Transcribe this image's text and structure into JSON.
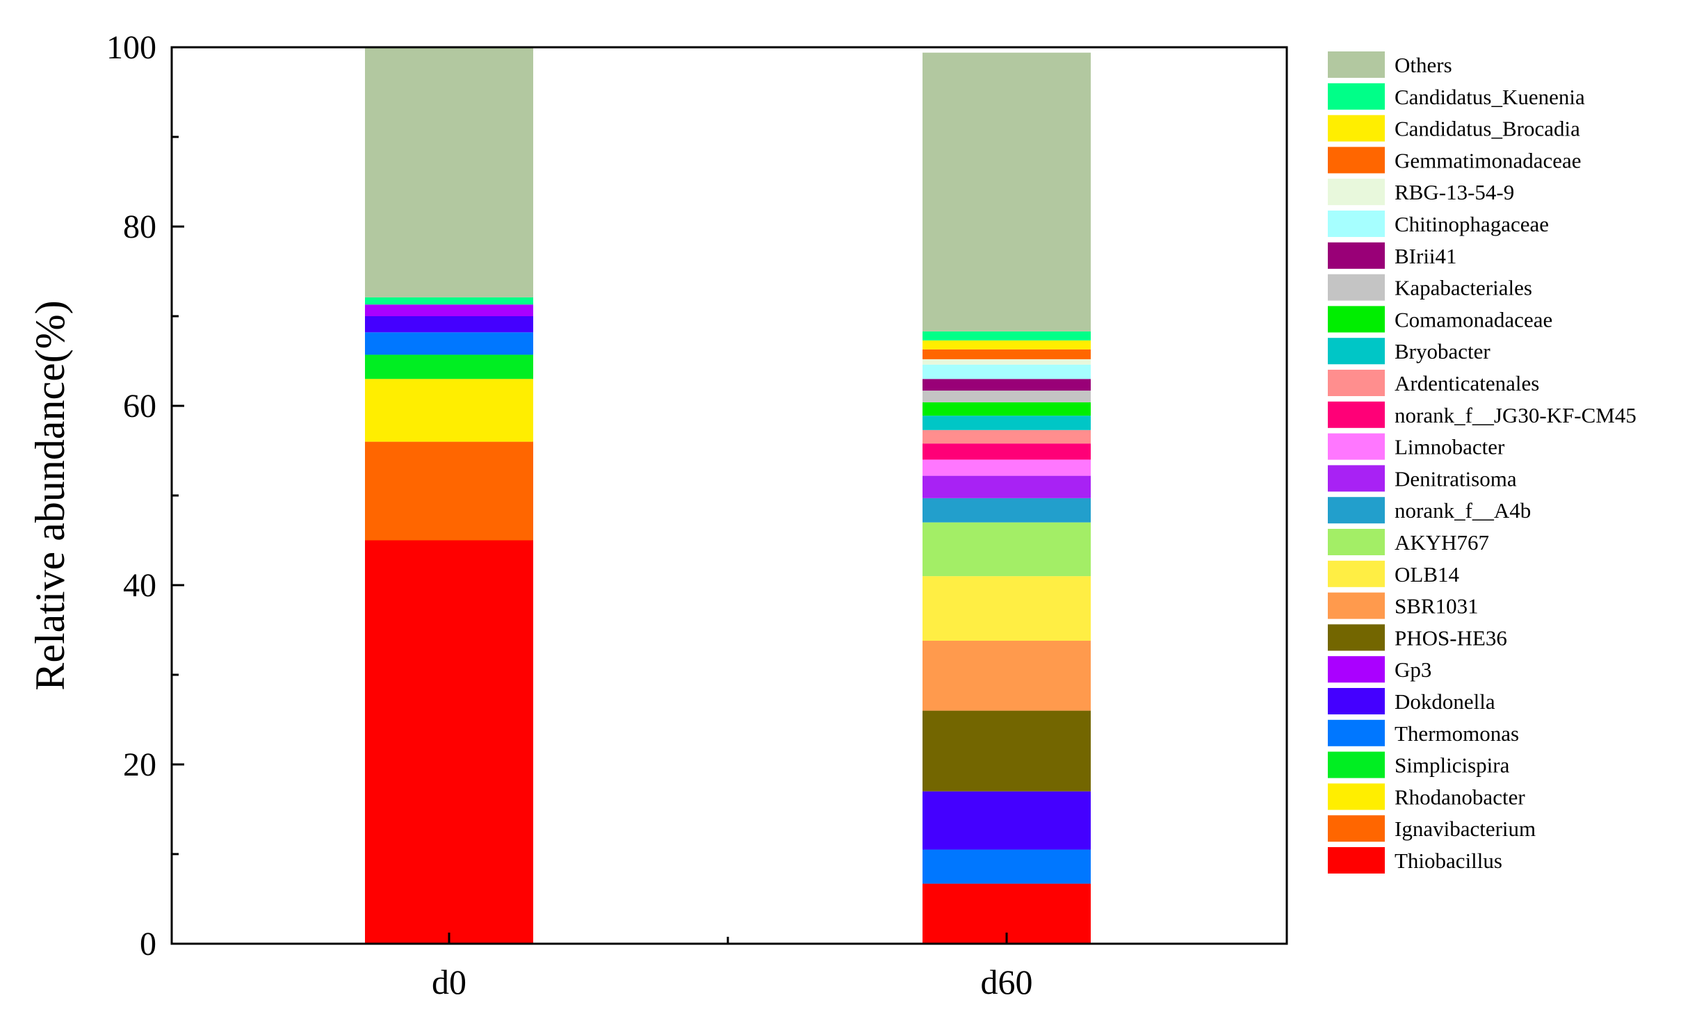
{
  "chart_data": {
    "type": "bar",
    "stacked": true,
    "title": "",
    "xlabel": "",
    "ylabel": "Relative abundance(%)",
    "ylim": [
      0,
      100
    ],
    "yticks": [
      0,
      20,
      40,
      60,
      80,
      100
    ],
    "categories": [
      "d0",
      "d60"
    ],
    "legend_position": "right",
    "grid": false,
    "series": [
      {
        "name": "Thiobacillus",
        "color": "#FF0000",
        "values": [
          45.0,
          6.7
        ]
      },
      {
        "name": "Ignavibacterium",
        "color": "#FF6600",
        "values": [
          11.0,
          0.0
        ]
      },
      {
        "name": "Rhodanobacter",
        "color": "#FFEE00",
        "values": [
          7.0,
          0.0
        ]
      },
      {
        "name": "Simplicispira",
        "color": "#00EE22",
        "values": [
          2.7,
          0.0
        ]
      },
      {
        "name": "Thermomonas",
        "color": "#0077FF",
        "values": [
          2.5,
          3.8
        ]
      },
      {
        "name": "Dokdonella",
        "color": "#4400FF",
        "values": [
          1.8,
          6.5
        ]
      },
      {
        "name": "Gp3",
        "color": "#AA00FF",
        "values": [
          1.3,
          0.0
        ]
      },
      {
        "name": "PHOS-HE36",
        "color": "#736600",
        "values": [
          0.0,
          9.0
        ]
      },
      {
        "name": "SBR1031",
        "color": "#FF9A4D",
        "values": [
          0.0,
          7.8
        ]
      },
      {
        "name": "OLB14",
        "color": "#FFEE44",
        "values": [
          0.0,
          7.2
        ]
      },
      {
        "name": "AKYH767",
        "color": "#A3EE66",
        "values": [
          0.0,
          6.0
        ]
      },
      {
        "name": "norank_f__A4b",
        "color": "#229FCC",
        "values": [
          0.0,
          2.7
        ]
      },
      {
        "name": "Denitratisoma",
        "color": "#A822F4",
        "values": [
          0.0,
          2.5
        ]
      },
      {
        "name": "Limnobacter",
        "color": "#FF77FF",
        "values": [
          0.0,
          1.8
        ]
      },
      {
        "name": "norank_f__JG30-KF-CM45",
        "color": "#FF0077",
        "values": [
          0.0,
          1.8
        ]
      },
      {
        "name": "Ardenticatenales",
        "color": "#FF8E8E",
        "values": [
          0.0,
          1.5
        ]
      },
      {
        "name": "Bryobacter",
        "color": "#00C6C6",
        "values": [
          0.0,
          1.6
        ]
      },
      {
        "name": "Comamonadaceae",
        "color": "#00EE00",
        "values": [
          0.0,
          1.5
        ]
      },
      {
        "name": "Kapabacteriales",
        "color": "#C4C4C4",
        "values": [
          0.0,
          1.3
        ]
      },
      {
        "name": "BIrii41",
        "color": "#990077",
        "values": [
          0.0,
          1.3
        ]
      },
      {
        "name": "Chitinophagaceae",
        "color": "#A6FFFF",
        "values": [
          0.0,
          1.6
        ]
      },
      {
        "name": "RBG-13-54-9",
        "color": "#E8F8DC",
        "values": [
          0.0,
          0.6
        ]
      },
      {
        "name": "Gemmatimonadaceae",
        "color": "#FF6600",
        "values": [
          0.0,
          1.1
        ]
      },
      {
        "name": "Candidatus_Brocadia",
        "color": "#FFEE00",
        "values": [
          0.0,
          1.0
        ]
      },
      {
        "name": "Candidatus_Kuenenia",
        "color": "#00FF88",
        "values": [
          0.8,
          1.0
        ]
      },
      {
        "name": "Others",
        "color": "#B2C8A0",
        "values": [
          27.9,
          31.1
        ]
      }
    ]
  }
}
